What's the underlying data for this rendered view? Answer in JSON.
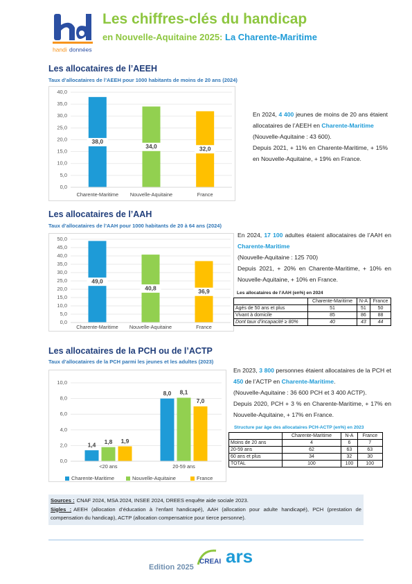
{
  "header": {
    "logo_text": [
      "handi",
      "données"
    ],
    "title": "Les chiffres-clés du handicap",
    "subtitle": "en Nouvelle-Aquitaine 2025: ",
    "subtitle_highlight": "La Charente-Maritime"
  },
  "chart_data": [
    {
      "type": "bar",
      "title": "Les allocataires de l’AEEH",
      "subtitle": "Taux d’allocataires de l’AEEH pour 1000 habitants de moins de 20 ans (2024)",
      "categories": [
        "Charente-Maritime",
        "Nouvelle-Aquitaine",
        "France"
      ],
      "values": [
        38.0,
        34.0,
        32.0
      ],
      "value_labels": [
        "38,0",
        "34,0",
        "32,0"
      ],
      "colors": [
        "#1e9bd7",
        "#92d050",
        "#ffc000"
      ],
      "value_label_position": "center",
      "grid": true,
      "ylim": [
        0,
        40
      ],
      "yticks": [
        {
          "value": 0,
          "label": "0,0"
        },
        {
          "value": 5,
          "label": "5,0"
        },
        {
          "value": 10,
          "label": "10,0"
        },
        {
          "value": 15,
          "label": "15,0"
        },
        {
          "value": 20,
          "label": "20,0"
        },
        {
          "value": 25,
          "label": "25,0"
        },
        {
          "value": 30,
          "label": "30,0"
        },
        {
          "value": 35,
          "label": "35,0"
        },
        {
          "value": 40,
          "label": "40,0"
        }
      ]
    },
    {
      "type": "bar",
      "title": "Les allocataires de l’AAH",
      "subtitle": "Taux d’allocataires de l’AAH pour 1000 habitants de 20 à 64 ans (2024)",
      "categories": [
        "Charente-Maritime",
        "Nouvelle-Aquitaine",
        "France"
      ],
      "values": [
        49.0,
        40.8,
        36.9
      ],
      "value_labels": [
        "49,0",
        "40,8",
        "36,9"
      ],
      "colors": [
        "#1e9bd7",
        "#92d050",
        "#ffc000"
      ],
      "value_label_position": "center",
      "grid": true,
      "ylim": [
        0,
        50
      ],
      "yticks": [
        {
          "value": 0,
          "label": "0,0"
        },
        {
          "value": 5,
          "label": "5,0"
        },
        {
          "value": 10,
          "label": "10,0"
        },
        {
          "value": 15,
          "label": "15,0"
        },
        {
          "value": 20,
          "label": "20,0"
        },
        {
          "value": 25,
          "label": "25,0"
        },
        {
          "value": 30,
          "label": "30,0"
        },
        {
          "value": 35,
          "label": "35,0"
        },
        {
          "value": 40,
          "label": "40,0"
        },
        {
          "value": 45,
          "label": "45,0"
        },
        {
          "value": 50,
          "label": "50,0"
        }
      ]
    },
    {
      "type": "bar",
      "title": "Les allocataires de la PCH ou de l’ACTP",
      "subtitle": "Taux d’allocataires de la PCH parmi les jeunes et les adultes (2023)",
      "categories": [
        "<20 ans",
        "20-59 ans"
      ],
      "value_label_position": "above",
      "grid": true,
      "legend": "bottom",
      "series": [
        {
          "name": "Charente-Maritime",
          "color": "#1e9bd7",
          "values": [
            1.4,
            8.0
          ],
          "value_labels": [
            "1,4",
            "8,0"
          ]
        },
        {
          "name": "Nouvelle-Aquitaine",
          "color": "#92d050",
          "values": [
            1.8,
            8.1
          ],
          "value_labels": [
            "1,8",
            "8,1"
          ]
        },
        {
          "name": "France",
          "color": "#ffc000",
          "values": [
            1.9,
            7.0
          ],
          "value_labels": [
            "1,9",
            "7,0"
          ]
        }
      ],
      "ylim": [
        0,
        10
      ],
      "yticks": [
        {
          "value": 0,
          "label": "0,0"
        },
        {
          "value": 2,
          "label": "2,0"
        },
        {
          "value": 4,
          "label": "4,0"
        },
        {
          "value": 6,
          "label": "6,0"
        },
        {
          "value": 8,
          "label": "8,0"
        },
        {
          "value": 10,
          "label": "10,0"
        }
      ]
    }
  ],
  "sections": [
    {
      "paragraphs": [
        [
          {
            "text": "En 2024, "
          },
          {
            "text": "4 400",
            "bold": true
          },
          {
            "text": " jeunes de moins de 20 ans étaient allocataires de l’AEEH en "
          },
          {
            "text": "Charente-Maritime",
            "bold": true
          }
        ],
        [
          {
            "text": "(Nouvelle-Aquitaine : 43 600)."
          }
        ],
        [
          {
            "text": "Depuis 2021, + 11% en Charente-Maritime, + 15% en Nouvelle-Aquitaine, + 19% en France."
          }
        ]
      ]
    },
    {
      "paragraphs": [
        [
          {
            "text": "En 2024, "
          },
          {
            "text": "17 100",
            "bold": true
          },
          {
            "text": " adultes étaient allocataires de l’AAH en "
          },
          {
            "text": "Charente-Maritime",
            "bold": true
          }
        ],
        [
          {
            "text": "(Nouvelle-Aquitaine : 125 700)"
          }
        ],
        [
          {
            "text": "Depuis 2021, + 20% en Charente-Maritime, + 10% en Nouvelle-Aquitaine, + 10% en France."
          }
        ]
      ],
      "table": {
        "title": "Les allocataires de l’AAH (en%) en 2024",
        "header": [
          "Charente-Maritime",
          "N-A",
          "France"
        ],
        "rows": [
          [
            "Agés de 50 ans et plus",
            51,
            51,
            50
          ],
          [
            "Vivant à domicile",
            85,
            86,
            88
          ],
          [
            "Dont taux d’incapacité ≥ 80%",
            40,
            43,
            44
          ]
        ]
      }
    },
    {
      "paragraphs": [
        [
          {
            "text": "En 2023, "
          },
          {
            "text": "3 800",
            "bold": true
          },
          {
            "text": " personnes étaient allocataires de la PCH et "
          },
          {
            "text": "450",
            "bold": true
          },
          {
            "text": " de l’ACTP en "
          },
          {
            "text": "Charente-Maritime",
            "bold": true
          },
          {
            "text": "."
          }
        ],
        [
          {
            "text": "(Nouvelle-Aquitaine : 36 600 PCH et 3 400 ACTP)."
          }
        ],
        [
          {
            "text": "Depuis 2020, PCH + 3 % en Charente-Maritime, + 17% en Nouvelle-Aquitaine, + 17% en France."
          }
        ]
      ],
      "table": {
        "title": "Structure par âge des allocataires PCH-ACTP (en%) en 2023",
        "header": [
          "Charente-Maritime",
          "N-A",
          "France"
        ],
        "rows": [
          [
            "Moins de 20 ans",
            4,
            6,
            7
          ],
          [
            "20-59 ans",
            62,
            63,
            63
          ],
          [
            "60 ans et plus",
            34,
            32,
            30
          ],
          [
            "TOTAL",
            100,
            100,
            100
          ]
        ]
      }
    }
  ],
  "sources": {
    "label": "Sources :",
    "text": "CNAF 2024, MSA 2024, INSEE 2024, DREES enquête aide sociale 2023."
  },
  "sigles": {
    "label": "Sigles :",
    "text": "AEEH (allocation d’éducation à l’enfant handicapé), AAH (allocation pour adulte handicapé), PCH (prestation de compensation du handicap), ACTP (allocation compensatrice pour tierce personne)."
  },
  "footer": {
    "edition": "Edition 2025",
    "logos": [
      "CREAI",
      "ars"
    ]
  }
}
